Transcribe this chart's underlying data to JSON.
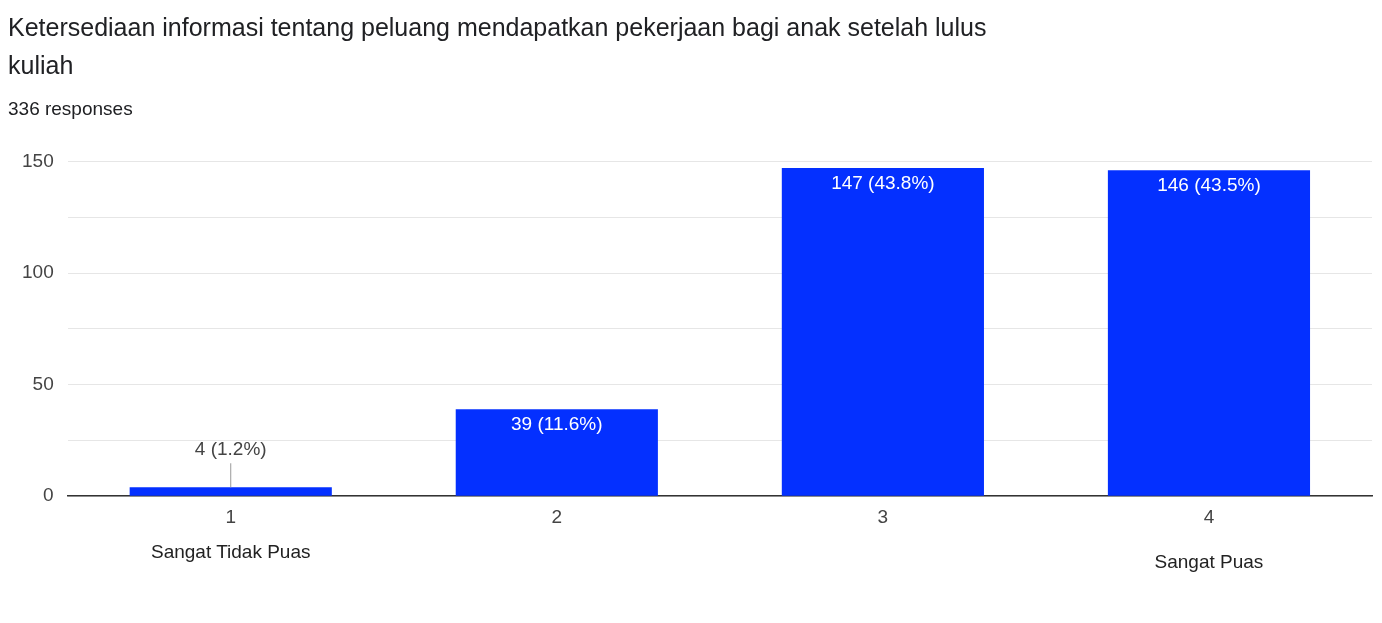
{
  "chart_data": {
    "type": "bar",
    "title": "Ketersediaan informasi tentang peluang mendapatkan pekerjaan bagi anak setelah lulus kuliah",
    "subtitle": "336 responses",
    "categories": [
      "1",
      "2",
      "3",
      "4"
    ],
    "values": [
      4,
      39,
      147,
      146
    ],
    "value_labels": [
      "4 (1.2%)",
      "39 (11.6%)",
      "147 (43.8%)",
      "146 (43.5%)"
    ],
    "color": "#0430ff",
    "ylim": [
      0,
      150
    ],
    "yticks": [
      0,
      {
        "value": 25,
        "label": null
      },
      50,
      {
        "value": 75,
        "label": null
      },
      100,
      {
        "value": 125,
        "label": null
      },
      150
    ],
    "grid": true,
    "legend": false,
    "annotations": [
      "Sangat Tidak Puas",
      "Sangat Puas"
    ]
  }
}
